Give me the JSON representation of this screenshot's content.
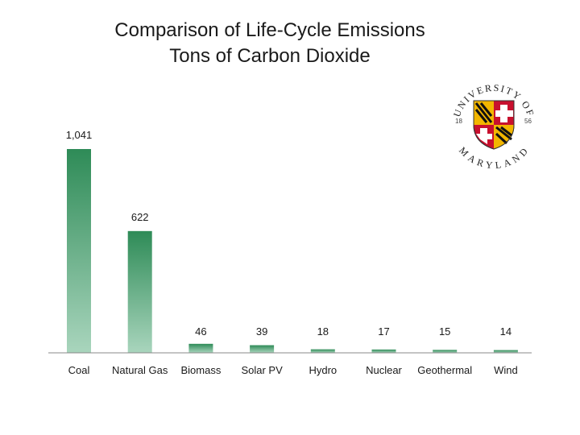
{
  "chart_data": {
    "type": "bar",
    "title": "Comparison of Life-Cycle Emissions",
    "subtitle": "Tons of Carbon Dioxide",
    "categories": [
      "Coal",
      "Natural Gas",
      "Biomass",
      "Solar PV",
      "Hydro",
      "Nuclear",
      "Geothermal",
      "Wind"
    ],
    "values": [
      1041,
      622,
      46,
      39,
      18,
      17,
      15,
      14
    ],
    "value_labels": [
      "1,041",
      "622",
      "46",
      "39",
      "18",
      "17",
      "15",
      "14"
    ],
    "xlabel": "",
    "ylabel": "",
    "ylim": [
      0,
      1041
    ],
    "grid": false,
    "legend": "none"
  },
  "logo": {
    "top_text": "UNIVERSITY OF",
    "bottom_text": "MARYLAND",
    "year_left": "18",
    "year_right": "56"
  },
  "colors": {
    "bar_top": "#2e8b57",
    "bar_bottom": "#a9d5bd",
    "axis": "#888888",
    "text": "#1a1a1a",
    "seal_red": "#c8102e",
    "seal_gold": "#f2b600",
    "seal_black": "#111111"
  }
}
